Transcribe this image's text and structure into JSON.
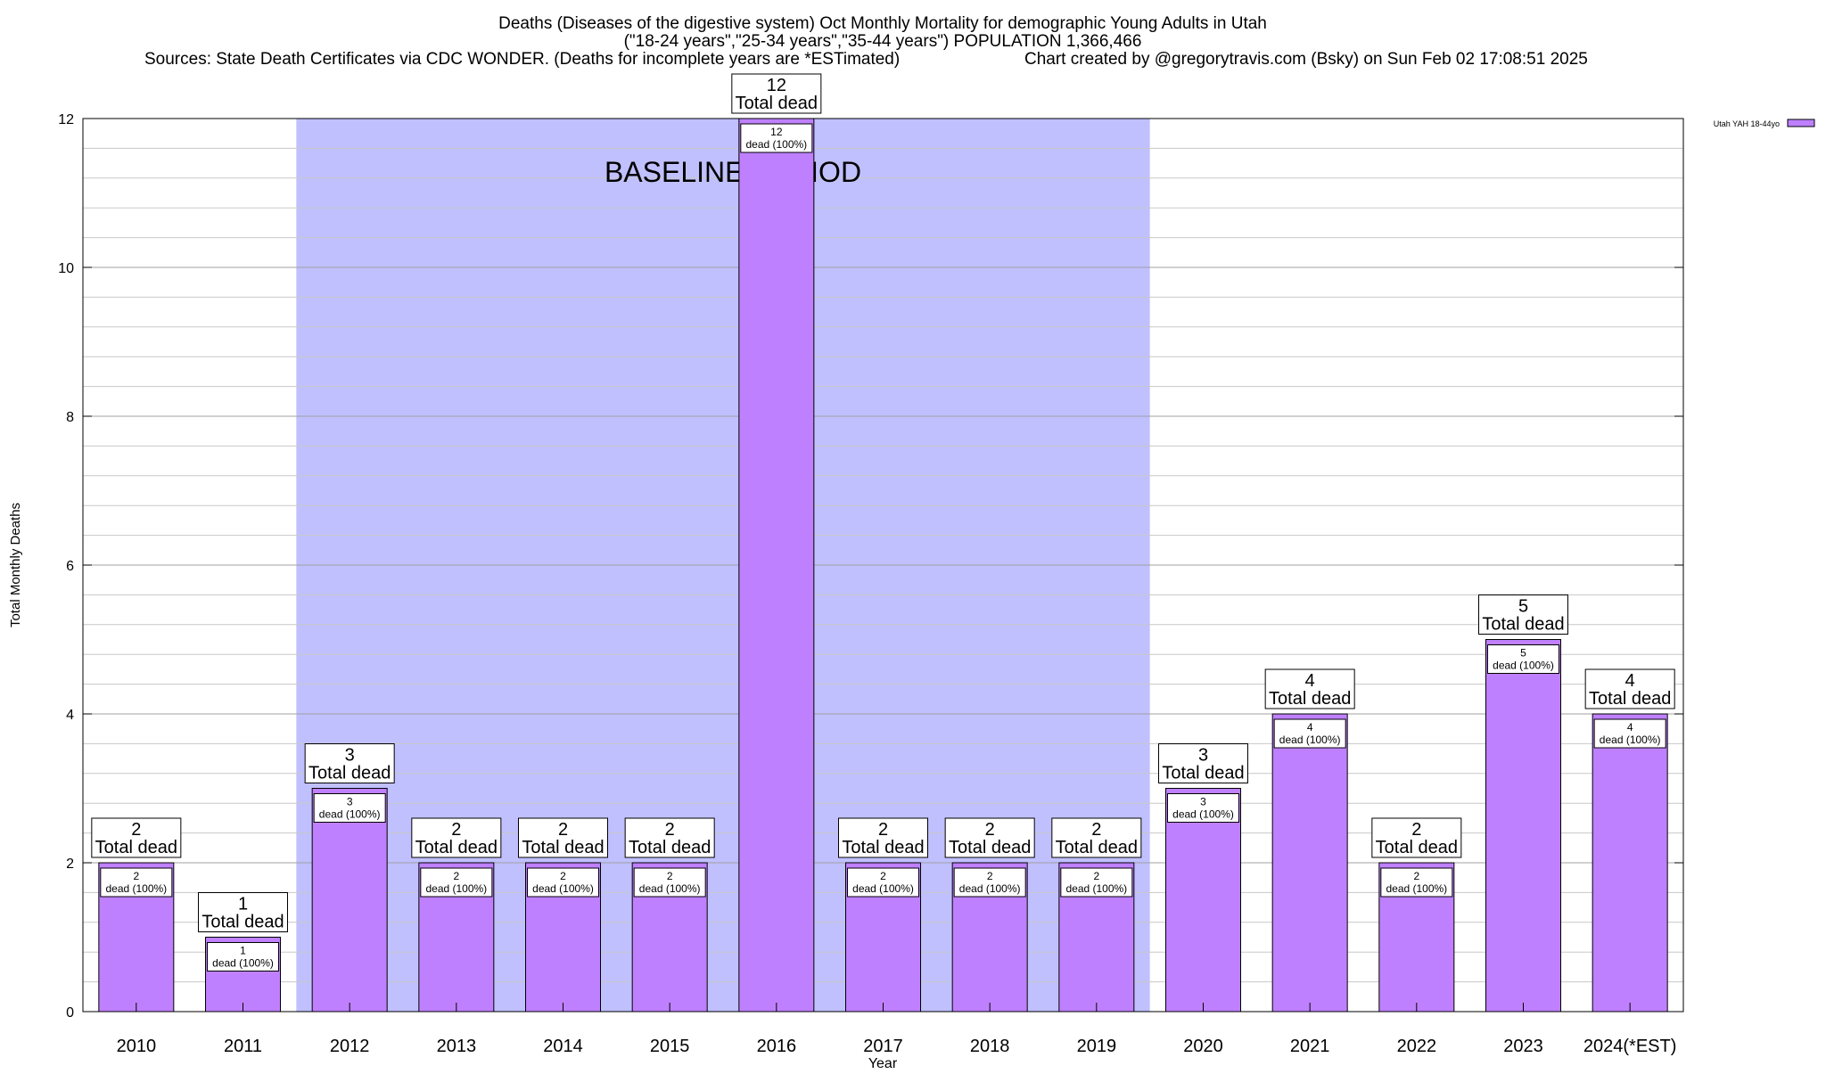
{
  "chart_data": {
    "type": "bar",
    "title": [
      "Deaths (Diseases of the digestive system) Oct Monthly Mortality for demographic Young Adults in Utah",
      "(\"18-24 years\",\"25-34 years\",\"35-44 years\") POPULATION 1,366,466"
    ],
    "sources": "Sources: State Death Certificates via CDC WONDER. (Deaths for incomplete years are *ESTimated)",
    "credit": "Chart created by @gregorytravis.com (Bsky) on Sun Feb 02 17:08:51 2025",
    "xlabel": "Year",
    "ylabel": "Total Monthly Deaths",
    "ylim": [
      0,
      12
    ],
    "yticks": [
      0,
      2,
      4,
      6,
      8,
      10,
      12
    ],
    "ytick_labels": [
      "0",
      "2",
      "4",
      "6",
      "8",
      "10",
      "12"
    ],
    "minor_grid_step": 0.4,
    "grid": true,
    "categories": [
      "2010",
      "2011",
      "2012",
      "2013",
      "2014",
      "2015",
      "2016",
      "2017",
      "2018",
      "2019",
      "2020",
      "2021",
      "2022",
      "2023",
      "2024(*EST)"
    ],
    "series": [
      {
        "name": "Utah YAH 18-44yo",
        "values": [
          2,
          1,
          3,
          2,
          2,
          2,
          12,
          2,
          2,
          2,
          3,
          4,
          2,
          5,
          4
        ],
        "color": "#bf80ff"
      }
    ],
    "total_label_suffix": "Total dead",
    "inner_label_suffix": "dead (100%)",
    "baseline_period": {
      "label": "BASELINE PERIOD",
      "from": "2012",
      "to": "2019",
      "color": "#c0c0ff"
    },
    "legend": {
      "position": "top-right"
    }
  }
}
